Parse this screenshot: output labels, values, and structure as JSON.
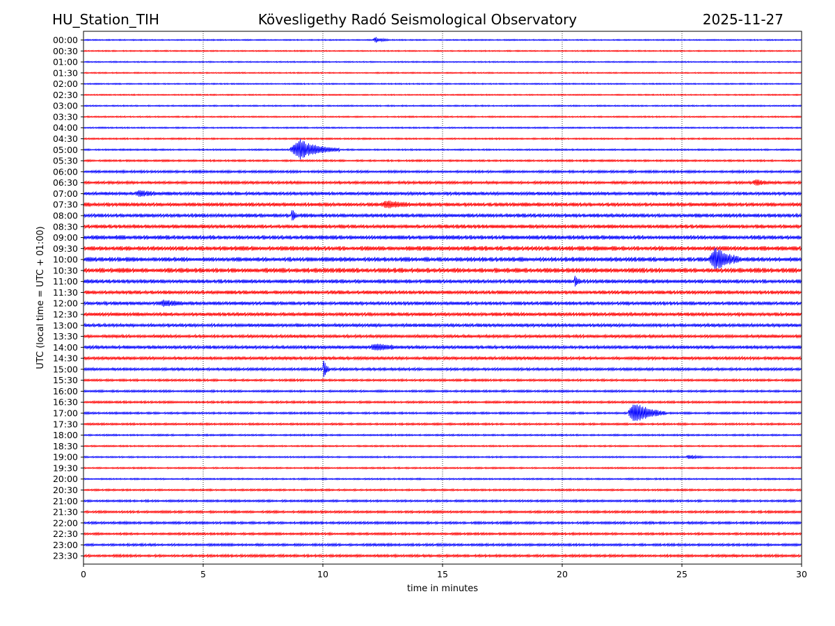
{
  "header": {
    "station": "HU_Station_TIH",
    "observatory": "Kövesligethy Radó Seismological Observatory",
    "date": "2025-11-27"
  },
  "chart_data": {
    "type": "line",
    "title": "Kövesligethy Radó Seismological Observatory",
    "xlabel": "time in minutes",
    "ylabel": "UTC (local time = UTC + 01:00)",
    "xlim": [
      0,
      30
    ],
    "xticks": [
      "0",
      "5",
      "10",
      "15",
      "20",
      "25",
      "30"
    ],
    "grid": "vertical dotted lines at x ticks",
    "colors": {
      "even": "#0000ff",
      "odd": "#ff0000"
    },
    "rows": [
      {
        "label": "00:00",
        "noise": 0.8,
        "events": [
          {
            "t": 12.1,
            "amp": 4,
            "dur": 0.6
          }
        ]
      },
      {
        "label": "00:30",
        "noise": 0.8,
        "events": []
      },
      {
        "label": "01:00",
        "noise": 0.8,
        "events": []
      },
      {
        "label": "01:30",
        "noise": 0.8,
        "events": []
      },
      {
        "label": "02:00",
        "noise": 0.8,
        "events": []
      },
      {
        "label": "02:30",
        "noise": 0.8,
        "events": []
      },
      {
        "label": "03:00",
        "noise": 0.9,
        "events": []
      },
      {
        "label": "03:30",
        "noise": 0.9,
        "events": []
      },
      {
        "label": "04:00",
        "noise": 0.9,
        "events": []
      },
      {
        "label": "04:30",
        "noise": 1.0,
        "events": []
      },
      {
        "label": "05:00",
        "noise": 1.0,
        "events": [
          {
            "t": 8.7,
            "amp": 16,
            "dur": 2.0
          }
        ]
      },
      {
        "label": "05:30",
        "noise": 1.2,
        "events": []
      },
      {
        "label": "06:00",
        "noise": 1.6,
        "events": []
      },
      {
        "label": "06:30",
        "noise": 1.8,
        "events": [
          {
            "t": 28.0,
            "amp": 4,
            "dur": 0.8
          }
        ]
      },
      {
        "label": "07:00",
        "noise": 2.2,
        "events": [
          {
            "t": 2.2,
            "amp": 4,
            "dur": 1.0
          }
        ]
      },
      {
        "label": "07:30",
        "noise": 2.5,
        "events": [
          {
            "t": 12.5,
            "amp": 5,
            "dur": 1.2
          }
        ]
      },
      {
        "label": "08:00",
        "noise": 2.5,
        "events": [
          {
            "t": 8.7,
            "amp": 10,
            "dur": 0.2
          }
        ]
      },
      {
        "label": "08:30",
        "noise": 2.5,
        "events": []
      },
      {
        "label": "09:00",
        "noise": 2.8,
        "events": []
      },
      {
        "label": "09:30",
        "noise": 3.0,
        "events": []
      },
      {
        "label": "10:00",
        "noise": 3.0,
        "events": [
          {
            "t": 26.2,
            "amp": 18,
            "dur": 1.2
          }
        ]
      },
      {
        "label": "10:30",
        "noise": 3.2,
        "events": []
      },
      {
        "label": "11:00",
        "noise": 2.6,
        "events": [
          {
            "t": 20.5,
            "amp": 8,
            "dur": 0.3
          }
        ]
      },
      {
        "label": "11:30",
        "noise": 2.4,
        "events": []
      },
      {
        "label": "12:00",
        "noise": 2.4,
        "events": [
          {
            "t": 3.2,
            "amp": 4,
            "dur": 1.0
          }
        ]
      },
      {
        "label": "12:30",
        "noise": 2.4,
        "events": []
      },
      {
        "label": "13:00",
        "noise": 2.2,
        "events": []
      },
      {
        "label": "13:30",
        "noise": 2.0,
        "events": []
      },
      {
        "label": "14:00",
        "noise": 2.2,
        "events": [
          {
            "t": 12.0,
            "amp": 4,
            "dur": 1.5
          }
        ]
      },
      {
        "label": "14:30",
        "noise": 2.0,
        "events": []
      },
      {
        "label": "15:00",
        "noise": 1.8,
        "events": [
          {
            "t": 10.0,
            "amp": 12,
            "dur": 0.3
          }
        ]
      },
      {
        "label": "15:30",
        "noise": 1.4,
        "events": []
      },
      {
        "label": "16:00",
        "noise": 1.4,
        "events": []
      },
      {
        "label": "16:30",
        "noise": 1.4,
        "events": []
      },
      {
        "label": "17:00",
        "noise": 1.3,
        "events": [
          {
            "t": 22.8,
            "amp": 18,
            "dur": 1.5
          }
        ]
      },
      {
        "label": "17:30",
        "noise": 1.3,
        "events": []
      },
      {
        "label": "18:00",
        "noise": 1.1,
        "events": []
      },
      {
        "label": "18:30",
        "noise": 1.0,
        "events": []
      },
      {
        "label": "19:00",
        "noise": 1.0,
        "events": [
          {
            "t": 25.2,
            "amp": 3,
            "dur": 0.8
          }
        ]
      },
      {
        "label": "19:30",
        "noise": 1.0,
        "events": []
      },
      {
        "label": "20:00",
        "noise": 1.0,
        "events": []
      },
      {
        "label": "20:30",
        "noise": 1.2,
        "events": []
      },
      {
        "label": "21:00",
        "noise": 1.4,
        "events": []
      },
      {
        "label": "21:30",
        "noise": 1.5,
        "events": []
      },
      {
        "label": "22:00",
        "noise": 1.6,
        "events": []
      },
      {
        "label": "22:30",
        "noise": 1.5,
        "events": []
      },
      {
        "label": "23:00",
        "noise": 1.6,
        "events": []
      },
      {
        "label": "23:30",
        "noise": 1.7,
        "events": []
      }
    ]
  }
}
